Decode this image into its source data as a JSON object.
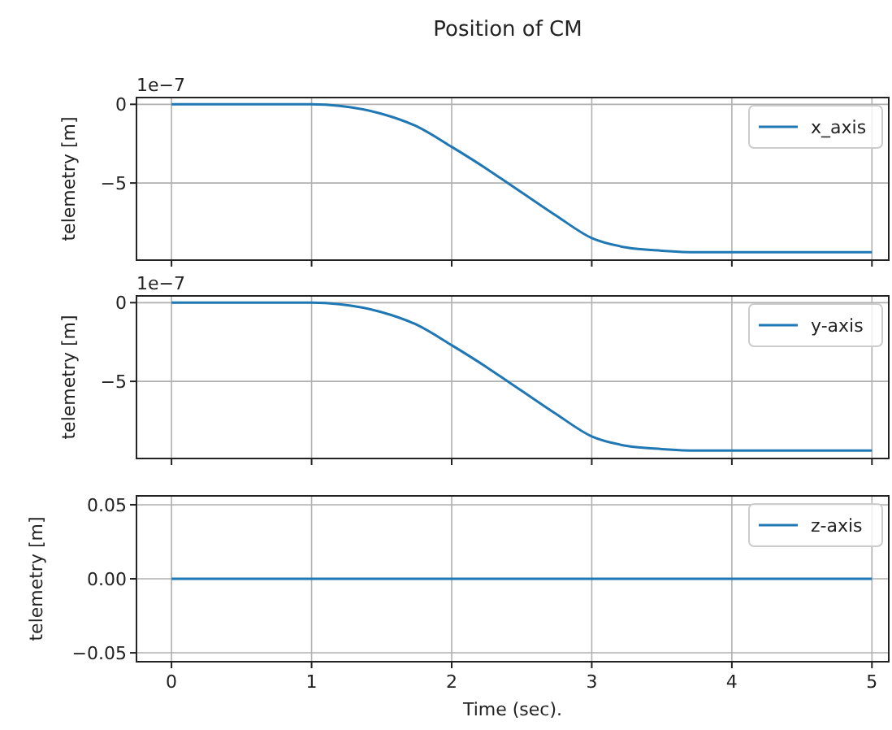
{
  "chart_data": [
    {
      "type": "line",
      "title": "Position of CM",
      "ylabel": "telemetry [m]",
      "annotations": [
        "1e−7"
      ],
      "x": [
        0,
        0.5,
        1,
        1.2,
        1.5,
        1.75,
        2,
        2.25,
        2.35,
        2.5,
        2.75,
        3,
        3.25,
        3.5,
        3.75,
        4,
        4.5,
        5
      ],
      "series": [
        {
          "name": "x_axis",
          "color": "#1f77b4",
          "values": [
            0,
            0,
            0,
            -0.1,
            -0.6,
            -1.4,
            -2.7,
            -4.1,
            -4.7,
            -5.6,
            -7.1,
            -8.5,
            -9.1,
            -9.3,
            -9.4,
            -9.4,
            -9.4,
            -9.4
          ]
        }
      ],
      "xlim": [
        -0.25,
        5.12
      ],
      "xticks": [
        0,
        1,
        2,
        3,
        4,
        5
      ],
      "ylim": [
        -9.9,
        0.43
      ],
      "yticks": [
        {
          "value": -5,
          "label": "−5"
        },
        0
      ],
      "grid": true,
      "legend": "top right",
      "tick_labels": "y"
    },
    {
      "type": "line",
      "ylabel": "telemetry [m]",
      "annotations": [
        "1e−7"
      ],
      "x": [
        0,
        0.5,
        1,
        1.2,
        1.5,
        1.75,
        2,
        2.25,
        2.35,
        2.5,
        2.75,
        3,
        3.25,
        3.5,
        3.75,
        4,
        4.5,
        5
      ],
      "series": [
        {
          "name": "y-axis",
          "color": "#1f77b4",
          "values": [
            0,
            0,
            0,
            -0.1,
            -0.6,
            -1.4,
            -2.7,
            -4.1,
            -4.7,
            -5.6,
            -7.1,
            -8.5,
            -9.1,
            -9.3,
            -9.4,
            -9.4,
            -9.4,
            -9.4
          ]
        }
      ],
      "xlim": [
        -0.25,
        5.12
      ],
      "xticks": [
        0,
        1,
        2,
        3,
        4,
        5
      ],
      "ylim": [
        -9.9,
        0.43
      ],
      "yticks": [
        {
          "value": -5,
          "label": "−5"
        },
        0
      ],
      "grid": true,
      "legend": "top right",
      "tick_labels": "y"
    },
    {
      "type": "line",
      "ylabel": "telemetry [m]",
      "xlabel": "Time (sec).",
      "x": [
        0,
        5
      ],
      "series": [
        {
          "name": "z-axis",
          "color": "#1f77b4",
          "values": [
            0,
            0
          ]
        }
      ],
      "xlim": [
        -0.25,
        5.12
      ],
      "xticks": [
        0,
        1,
        2,
        3,
        4,
        5
      ],
      "ylim": [
        -0.056,
        0.056
      ],
      "yticks": [
        {
          "value": -0.05,
          "label": "−0.05"
        },
        {
          "value": 0,
          "label": "0.00"
        },
        {
          "value": 0.05,
          "label": "0.05"
        }
      ],
      "grid": true,
      "legend": "top right"
    }
  ]
}
